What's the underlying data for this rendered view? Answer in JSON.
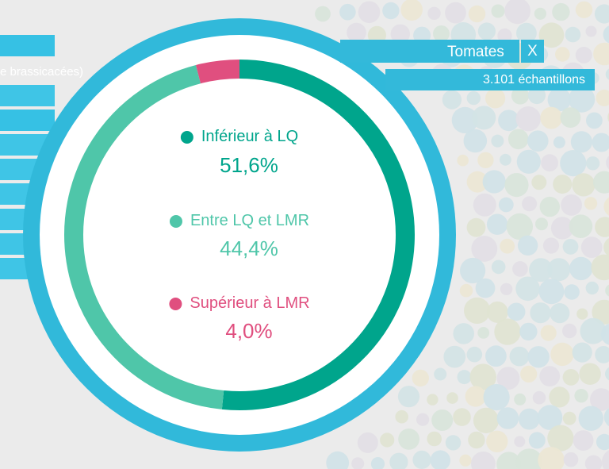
{
  "tooltip": {
    "title": "Tomates",
    "close_label": "X",
    "samples": "3.101 échantillons"
  },
  "sidebar": {
    "partial_label": "e brassicacées)"
  },
  "chart_data": {
    "type": "pie",
    "series": [
      {
        "name": "Inférieur à LQ",
        "value": 51.6,
        "label": "51,6%",
        "color": "#00a58c"
      },
      {
        "name": "Entre LQ et LMR",
        "value": 44.4,
        "label": "44,4%",
        "color": "#4fc6a9"
      },
      {
        "name": "Supérieur à LMR",
        "value": 4.0,
        "label": "4,0%",
        "color": "#e04f7f"
      }
    ]
  },
  "colors": {
    "ring": "#31b9da",
    "sidebar": "#36c1e4",
    "background": "#ebebeb"
  }
}
